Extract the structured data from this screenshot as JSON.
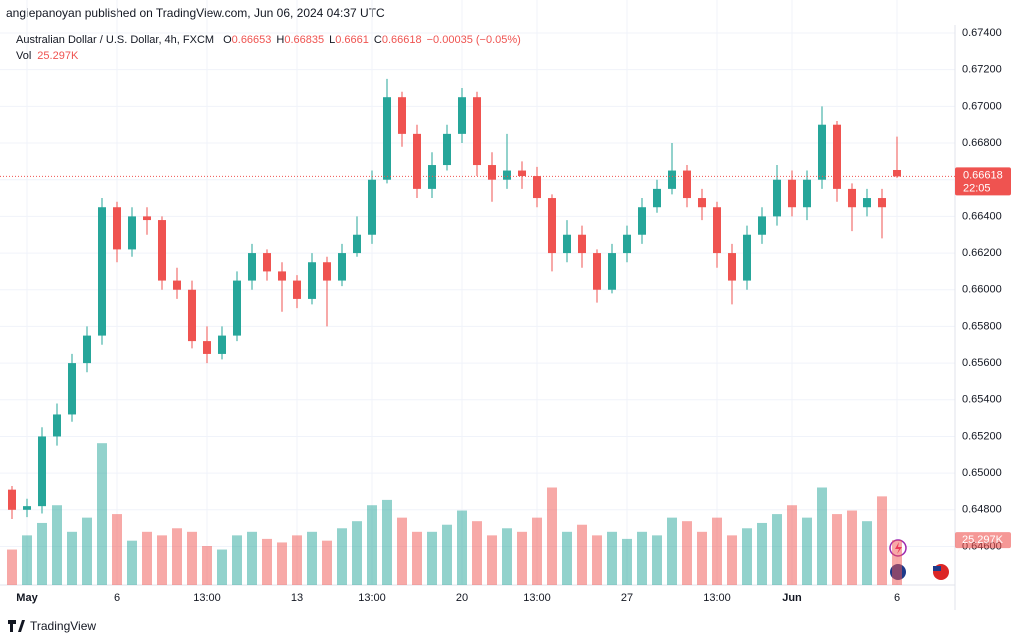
{
  "byline": "angiepanoyan published on TradingView.com, Jun 06, 2024 04:37 UTC",
  "brand": "TradingView",
  "chart_data": {
    "type": "candlestick",
    "title": "Australian Dollar / U.S. Dollar, 4h, FXCM",
    "ohlc_letters": [
      "O",
      "H",
      "L",
      "C"
    ],
    "change_label": "−0.00035 (−0.05%)",
    "countdown": "22:05",
    "up_color": "#26a69a",
    "down_color": "#ef5350",
    "grid": true,
    "categories": [
      null,
      "May",
      null,
      null,
      null,
      null,
      null,
      "6",
      null,
      null,
      null,
      null,
      null,
      "13:00",
      null,
      null,
      null,
      null,
      null,
      "13",
      null,
      null,
      null,
      null,
      "13:00",
      null,
      null,
      null,
      null,
      null,
      "20",
      null,
      null,
      null,
      null,
      "13:00",
      null,
      null,
      null,
      null,
      null,
      "27",
      null,
      null,
      null,
      null,
      null,
      "13:00",
      null,
      null,
      null,
      null,
      "Jun",
      null,
      null,
      null,
      null,
      null,
      null,
      "6"
    ],
    "open": [
      0.6491,
      0.648,
      0.6482,
      0.652,
      0.6532,
      0.656,
      0.6575,
      0.6645,
      0.6622,
      0.664,
      0.6638,
      0.6605,
      0.66,
      0.6572,
      0.6565,
      0.6575,
      0.6605,
      0.662,
      0.661,
      0.6605,
      0.6595,
      0.6615,
      0.6605,
      0.662,
      0.663,
      0.666,
      0.6705,
      0.6685,
      0.6655,
      0.6668,
      0.6685,
      0.6705,
      0.6668,
      0.666,
      0.6665,
      0.6662,
      0.665,
      0.662,
      0.663,
      0.662,
      0.66,
      0.662,
      0.663,
      0.6645,
      0.6655,
      0.6665,
      0.665,
      0.6645,
      0.662,
      0.6605,
      0.663,
      0.664,
      0.666,
      0.6645,
      0.666,
      0.669,
      0.6655,
      0.6645,
      0.665,
      0.66653
    ],
    "high": [
      0.6493,
      0.6486,
      0.6525,
      0.6538,
      0.6565,
      0.658,
      0.665,
      0.6648,
      0.6645,
      0.6645,
      0.664,
      0.6612,
      0.6605,
      0.658,
      0.658,
      0.661,
      0.6625,
      0.6622,
      0.6615,
      0.6608,
      0.662,
      0.6618,
      0.6625,
      0.664,
      0.6665,
      0.6715,
      0.6708,
      0.669,
      0.6675,
      0.669,
      0.671,
      0.6708,
      0.6675,
      0.6685,
      0.667,
      0.6667,
      0.6652,
      0.6638,
      0.6635,
      0.6622,
      0.6625,
      0.6635,
      0.665,
      0.666,
      0.668,
      0.6668,
      0.6655,
      0.6648,
      0.6625,
      0.6635,
      0.6645,
      0.6668,
      0.6665,
      0.6665,
      0.67,
      0.6692,
      0.6658,
      0.6655,
      0.6655,
      0.66835
    ],
    "low": [
      0.6475,
      0.6476,
      0.6478,
      0.6515,
      0.6528,
      0.6555,
      0.657,
      0.6615,
      0.6618,
      0.663,
      0.66,
      0.6595,
      0.6568,
      0.656,
      0.6562,
      0.6572,
      0.66,
      0.6605,
      0.6588,
      0.659,
      0.6592,
      0.658,
      0.6602,
      0.6618,
      0.6625,
      0.6658,
      0.6678,
      0.665,
      0.665,
      0.6665,
      0.668,
      0.6662,
      0.6648,
      0.6655,
      0.6655,
      0.6645,
      0.661,
      0.6615,
      0.6612,
      0.6593,
      0.6598,
      0.6615,
      0.6625,
      0.6642,
      0.6652,
      0.6645,
      0.6638,
      0.6612,
      0.6592,
      0.66,
      0.6625,
      0.6635,
      0.664,
      0.6638,
      0.6655,
      0.6648,
      0.6632,
      0.664,
      0.6628,
      0.6661
    ],
    "close": [
      0.648,
      0.6482,
      0.652,
      0.6532,
      0.656,
      0.6575,
      0.6645,
      0.6622,
      0.664,
      0.6638,
      0.6605,
      0.66,
      0.6572,
      0.6565,
      0.6575,
      0.6605,
      0.662,
      0.661,
      0.6605,
      0.6595,
      0.6615,
      0.6605,
      0.662,
      0.663,
      0.666,
      0.6705,
      0.6685,
      0.6655,
      0.6668,
      0.6685,
      0.6705,
      0.6668,
      0.666,
      0.6665,
      0.6662,
      0.665,
      0.662,
      0.663,
      0.662,
      0.66,
      0.662,
      0.663,
      0.6645,
      0.6655,
      0.6665,
      0.665,
      0.6645,
      0.662,
      0.6605,
      0.663,
      0.664,
      0.666,
      0.6645,
      0.666,
      0.669,
      0.6655,
      0.6645,
      0.665,
      0.6645,
      0.66618
    ],
    "volume": {
      "name": "Vol",
      "current_label": "25.297K",
      "values": [
        20,
        28,
        35,
        45,
        30,
        38,
        80,
        40,
        25,
        30,
        28,
        32,
        30,
        22,
        20,
        28,
        30,
        26,
        24,
        28,
        30,
        25,
        32,
        36,
        45,
        48,
        38,
        30,
        30,
        34,
        42,
        36,
        28,
        32,
        30,
        38,
        55,
        30,
        34,
        28,
        30,
        26,
        30,
        28,
        38,
        36,
        30,
        38,
        28,
        32,
        35,
        40,
        45,
        38,
        55,
        40,
        42,
        36,
        50,
        25.297
      ]
    },
    "vol_ylim": [
      0,
      330
    ],
    "ylim": [
      0.6439,
      0.6758
    ],
    "yticks": [
      {
        "value": 0.674,
        "label": "0.67400"
      },
      {
        "value": 0.672,
        "label": "0.67200"
      },
      {
        "value": 0.67,
        "label": "0.67000"
      },
      {
        "value": 0.668,
        "label": "0.66800"
      },
      {
        "value": 0.666,
        "label": "0.66600"
      },
      {
        "value": 0.664,
        "label": "0.66400"
      },
      {
        "value": 0.662,
        "label": "0.66200"
      },
      {
        "value": 0.66,
        "label": "0.66000"
      },
      {
        "value": 0.658,
        "label": "0.65800"
      },
      {
        "value": 0.656,
        "label": "0.65600"
      },
      {
        "value": 0.654,
        "label": "0.65400"
      },
      {
        "value": 0.652,
        "label": "0.65200"
      },
      {
        "value": 0.65,
        "label": "0.65000"
      },
      {
        "value": 0.648,
        "label": "0.64800"
      },
      {
        "value": 0.646,
        "label": "0.64600"
      }
    ]
  }
}
